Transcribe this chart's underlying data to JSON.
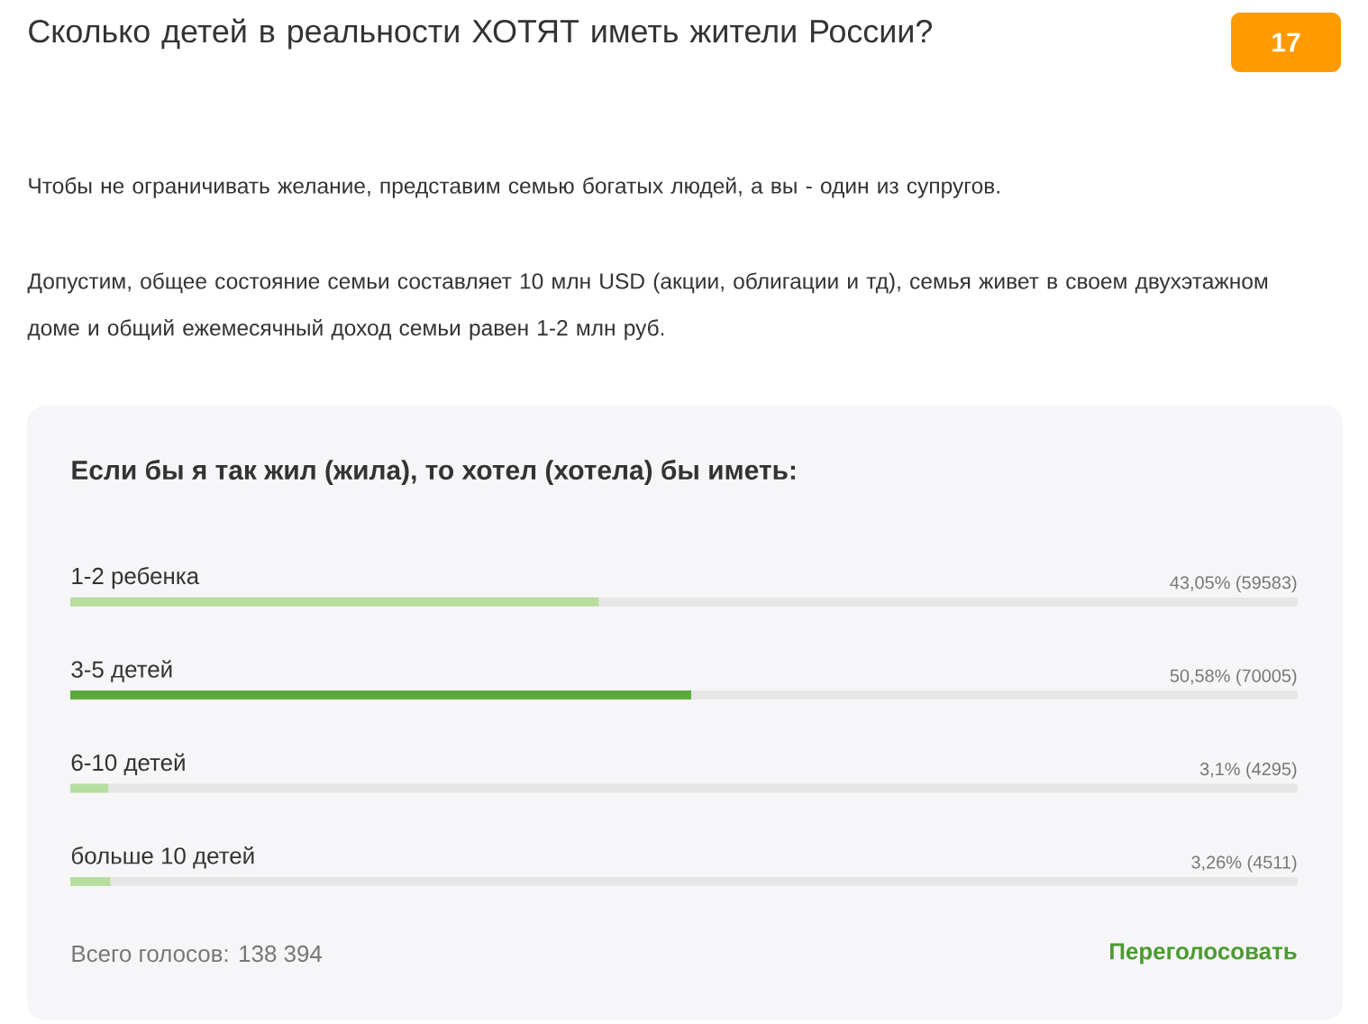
{
  "chart_data": {
    "type": "bar",
    "orientation": "horizontal",
    "title": "Сколько детей в реальности ХОТЯТ иметь жители России?",
    "subtitle": "Если бы я так жил (жила), то хотел (хотела) бы иметь:",
    "categories": [
      "1-2 ребенка",
      "3-5 детей",
      "6-10 детей",
      "больше 10 детей"
    ],
    "values": [
      43.05,
      50.58,
      3.1,
      3.26
    ],
    "colors": [
      "#b7de9e",
      "#5aab3c",
      "#b7de9e",
      "#b7de9e"
    ],
    "value_labels": [
      "43,05% (59583)",
      "50,58% (70005)",
      "3,1% (4295)",
      "3,26% (4511)"
    ],
    "annotations": [
      "17",
      "Чтобы не ограничивать желание, представим семью богатых людей, а вы - один из супругов.",
      "Допустим, общее состояние семьи составляет 10 млн USD (акции, облигации и тд), семья живет в своем двухэтажном доме и общий ежемесячный доход семьи равен 1-2 млн руб.",
      "Всего голосов:  138 394",
      "Переголосовать"
    ]
  }
}
